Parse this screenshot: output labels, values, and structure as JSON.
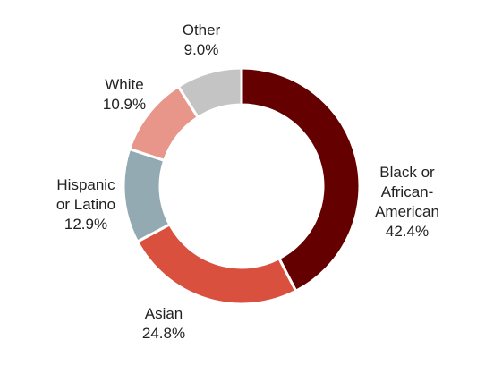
{
  "chart_data": {
    "type": "pie",
    "variant": "donut",
    "title": "",
    "legend": "none",
    "slices": [
      {
        "label_lines": [
          "Black or",
          "African-",
          "American"
        ],
        "value": 42.4,
        "value_label": "42.4%",
        "color": "#650000"
      },
      {
        "label_lines": [
          "Asian"
        ],
        "value": 24.8,
        "value_label": "24.8%",
        "color": "#d9503f"
      },
      {
        "label_lines": [
          "Hispanic",
          "or Latino"
        ],
        "value": 12.9,
        "value_label": "12.9%",
        "color": "#93aab2"
      },
      {
        "label_lines": [
          "White"
        ],
        "value": 10.9,
        "value_label": "10.9%",
        "color": "#e8958a"
      },
      {
        "label_lines": [
          "Other"
        ],
        "value": 9.0,
        "value_label": "9.0%",
        "color": "#c4c4c4"
      }
    ]
  }
}
